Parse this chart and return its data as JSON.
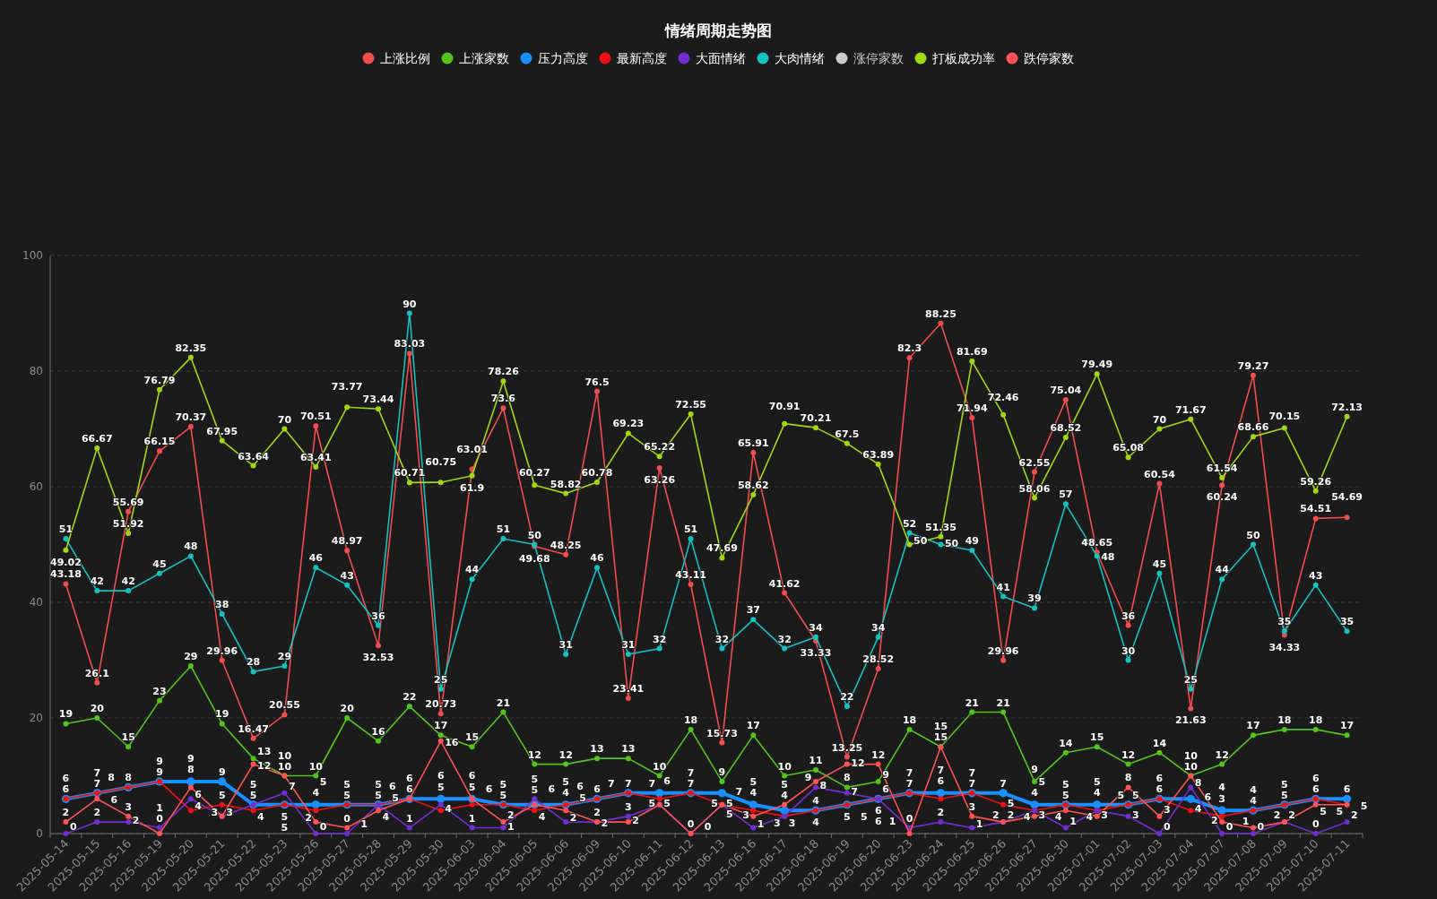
{
  "chart_data": {
    "type": "line",
    "title": "情绪周期走势图",
    "categories": [
      "2025-05-14",
      "2025-05-15",
      "2025-05-16",
      "2025-05-19",
      "2025-05-20",
      "2025-05-21",
      "2025-05-22",
      "2025-05-23",
      "2025-05-26",
      "2025-05-27",
      "2025-05-28",
      "2025-05-29",
      "2025-05-30",
      "2025-06-03",
      "2025-06-04",
      "2025-06-05",
      "2025-06-06",
      "2025-06-09",
      "2025-06-10",
      "2025-06-11",
      "2025-06-12",
      "2025-06-13",
      "2025-06-16",
      "2025-06-17",
      "2025-06-18",
      "2025-06-19",
      "2025-06-20",
      "2025-06-23",
      "2025-06-24",
      "2025-06-25",
      "2025-06-26",
      "2025-06-27",
      "2025-06-30",
      "2025-07-01",
      "2025-07-02",
      "2025-07-03",
      "2025-07-04",
      "2025-07-07",
      "2025-07-08",
      "2025-07-09",
      "2025-07-10",
      "2025-07-11"
    ],
    "series": [
      {
        "name": "上涨比例",
        "color": "#f04d4d",
        "values": [
          43.18,
          26.1,
          55.69,
          66.15,
          70.37,
          29.96,
          16.47,
          20.55,
          70.51,
          48.97,
          32.53,
          83.03,
          20.73,
          63.01,
          73.6,
          49.68,
          48.25,
          76.5,
          23.41,
          63.26,
          43.11,
          15.73,
          65.91,
          41.62,
          33.33,
          13.25,
          28.52,
          82.3,
          88.25,
          71.94,
          29.96,
          62.55,
          75.04,
          48.65,
          36,
          60.54,
          21.63,
          60.24,
          79.27,
          34.33,
          54.51,
          54.69
        ]
      },
      {
        "name": "上涨家数",
        "color": "#52c41a",
        "values": [
          19,
          20,
          15,
          23,
          29,
          19,
          13,
          10,
          10,
          20,
          16,
          22,
          17,
          15,
          21,
          12,
          12,
          13,
          13,
          10,
          18,
          9,
          17,
          10,
          11,
          8,
          9,
          18,
          15,
          21,
          21,
          9,
          14,
          15,
          12,
          14,
          10,
          12,
          17,
          18,
          18,
          17
        ]
      },
      {
        "name": "压力高度",
        "color": "#1890ff",
        "values": [
          6,
          7,
          8,
          9,
          9,
          9,
          5,
          5,
          5,
          5,
          5,
          6,
          6,
          6,
          5,
          5,
          5,
          6,
          7,
          7,
          7,
          7,
          5,
          4,
          4,
          5,
          6,
          7,
          7,
          7,
          7,
          5,
          5,
          5,
          5,
          6,
          6,
          4,
          4,
          5,
          6,
          6
        ]
      },
      {
        "name": "最新高度",
        "color": "#f01010",
        "values": [
          6,
          7,
          8,
          9,
          4,
          5,
          4,
          5,
          4,
          5,
          5,
          6,
          4,
          5,
          5,
          4,
          5,
          6,
          7,
          6,
          7,
          5,
          4,
          3,
          4,
          5,
          6,
          7,
          6,
          7,
          5,
          4,
          5,
          4,
          5,
          6,
          4,
          3,
          4,
          5,
          6,
          5
        ]
      },
      {
        "name": "大面情绪",
        "color": "#722ed1",
        "values": [
          0,
          2,
          2,
          1,
          6,
          3,
          5,
          7,
          0,
          0,
          5,
          1,
          5,
          1,
          1,
          6,
          2,
          2,
          3,
          5,
          0,
          5,
          1,
          3,
          8,
          7,
          6,
          1,
          2,
          1,
          2,
          4,
          1,
          4,
          3,
          0,
          8,
          0,
          0,
          2,
          0,
          2
        ]
      },
      {
        "name": "大肉情绪",
        "color": "#13c2c2",
        "values": [
          51,
          42,
          42,
          45,
          48,
          38,
          28,
          29,
          46,
          43,
          36,
          90,
          25,
          44,
          51,
          50,
          31,
          46,
          31,
          32,
          51,
          32,
          37,
          32,
          34,
          22,
          34,
          52,
          50,
          49,
          41,
          39,
          57,
          48,
          30,
          45,
          25,
          44,
          50,
          35,
          43,
          35
        ]
      },
      {
        "name": "涨停家数",
        "color": "#cccccc",
        "values": [
          null,
          null,
          null,
          null,
          null,
          null,
          null,
          null,
          null,
          null,
          null,
          null,
          null,
          null,
          null,
          null,
          null,
          null,
          null,
          null,
          null,
          null,
          null,
          null,
          null,
          null,
          null,
          null,
          null,
          null,
          null,
          null,
          null,
          null,
          null,
          null,
          null,
          null,
          null,
          null,
          null,
          null
        ]
      },
      {
        "name": "打板成功率",
        "color": "#a0d911",
        "values": [
          49.02,
          66.67,
          51.92,
          76.79,
          82.35,
          67.95,
          63.64,
          70,
          63.41,
          73.77,
          73.44,
          60.71,
          60.75,
          61.9,
          78.26,
          60.27,
          58.82,
          60.78,
          69.23,
          65.22,
          72.55,
          47.69,
          58.62,
          70.91,
          70.21,
          67.5,
          63.89,
          50,
          51.35,
          81.69,
          72.46,
          58.06,
          68.52,
          79.49,
          65.08,
          70,
          71.67,
          61.54,
          68.66,
          70.15,
          59.26,
          72.13
        ]
      },
      {
        "name": "跌停家数",
        "color": "#ff5252",
        "values": [
          2,
          6,
          3,
          0,
          8,
          3,
          12,
          10,
          2,
          1,
          4,
          6,
          16,
          6,
          2,
          5,
          4,
          2,
          2,
          5,
          0,
          5,
          3,
          5,
          9,
          12,
          12,
          0,
          15,
          3,
          2,
          3,
          4,
          3,
          8,
          3,
          10,
          2,
          1,
          2,
          5,
          5
        ]
      }
    ],
    "ylim": [
      0,
      100
    ],
    "yticks": [
      0,
      20,
      40,
      60,
      80,
      100
    ],
    "grid": "y",
    "legend": "top",
    "data_labels": true,
    "marker": "circle",
    "line_style": "solid"
  }
}
